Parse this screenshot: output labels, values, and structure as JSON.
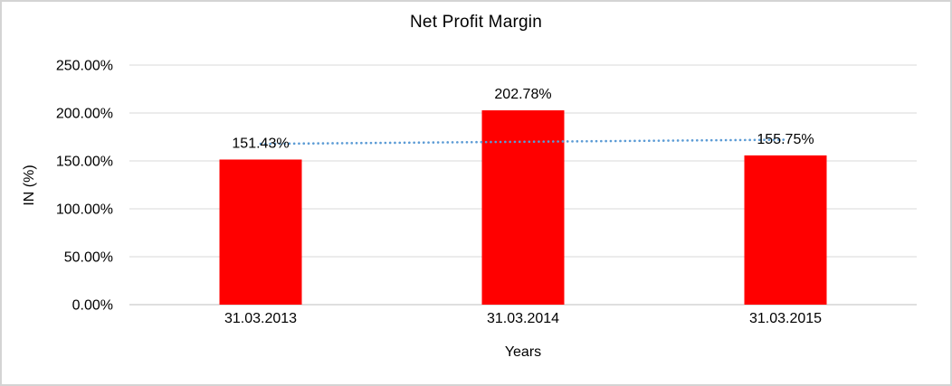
{
  "chart_data": {
    "type": "bar",
    "title": "Net Profit Margin",
    "xlabel": "Years",
    "ylabel": "IN (%)",
    "categories": [
      "31.03.2013",
      "31.03.2014",
      "31.03.2015"
    ],
    "values": [
      151.43,
      202.78,
      155.75
    ],
    "data_labels": [
      "151.43%",
      "202.78%",
      "155.75%"
    ],
    "ylim": [
      0,
      250
    ],
    "ytick_step": 50,
    "ytick_labels": [
      "0.00%",
      "50.00%",
      "100.00%",
      "150.00%",
      "200.00%",
      "250.00%"
    ],
    "grid": true,
    "legend": "none",
    "bar_color": "#FF0000",
    "trendline": {
      "type": "linear",
      "style": "dotted",
      "color": "#5B9BD5",
      "start_value": 167.83,
      "end_value": 172.15
    }
  },
  "colors": {
    "gridline": "#D9D9D9",
    "axis_line": "#BFBFBF",
    "text": "#000000",
    "background": "#FFFFFF",
    "frame_border": "#D4D4D4"
  }
}
